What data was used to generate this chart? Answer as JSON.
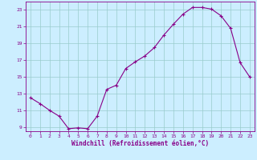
{
  "x": [
    0,
    1,
    2,
    3,
    4,
    5,
    6,
    7,
    8,
    9,
    10,
    11,
    12,
    13,
    14,
    15,
    16,
    17,
    18,
    19,
    20,
    21,
    22,
    23
  ],
  "y": [
    12.5,
    11.8,
    11.0,
    10.3,
    8.8,
    8.9,
    8.8,
    10.3,
    13.5,
    14.0,
    16.0,
    16.8,
    17.5,
    18.5,
    20.0,
    21.3,
    22.5,
    23.3,
    23.3,
    23.1,
    22.3,
    20.8,
    16.7,
    15.0
  ],
  "ylim": [
    8.5,
    24.0
  ],
  "yticks": [
    9,
    11,
    13,
    15,
    17,
    19,
    21,
    23
  ],
  "xlim": [
    -0.5,
    23.5
  ],
  "xticks": [
    0,
    1,
    2,
    3,
    4,
    5,
    6,
    7,
    8,
    9,
    10,
    11,
    12,
    13,
    14,
    15,
    16,
    17,
    18,
    19,
    20,
    21,
    22,
    23
  ],
  "line_color": "#880088",
  "marker": "+",
  "marker_size": 3.5,
  "linewidth": 0.8,
  "background_color": "#cceeff",
  "grid_color": "#99cccc",
  "xlabel": "Windchill (Refroidissement éolien,°C)",
  "xlabel_color": "#880088",
  "tick_color": "#880088",
  "border_color": "#880088",
  "tick_fontsize": 4.5,
  "xlabel_fontsize": 5.5
}
